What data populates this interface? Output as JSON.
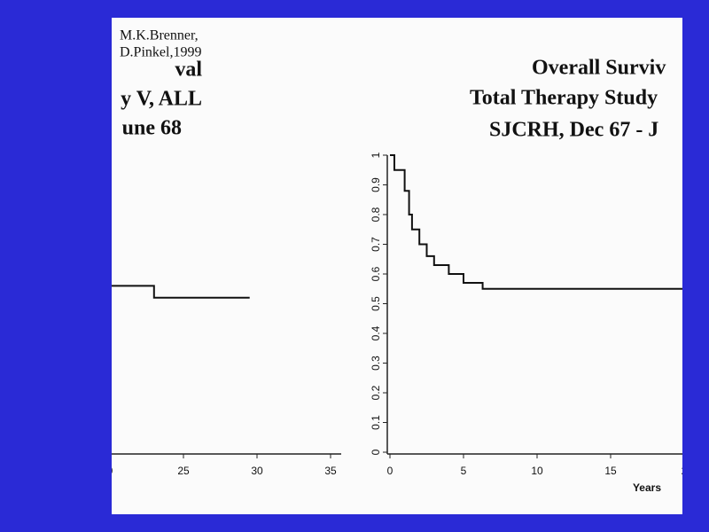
{
  "citation": [
    "M.K.Brenner,",
    "D.Pinkel,1999"
  ],
  "chart_data": [
    {
      "type": "line",
      "step": true,
      "title": [
        "val",
        "y V, ALL",
        "une 68"
      ],
      "x": [
        20,
        23,
        29.5
      ],
      "values": [
        0.56,
        0.52,
        0.52
      ],
      "color": "#111111",
      "xlim": [
        20,
        35
      ],
      "xticks": [
        {
          "value": 20,
          "label": "0"
        },
        25,
        30,
        35
      ],
      "ylim": [
        0,
        1
      ]
    },
    {
      "type": "line",
      "step": true,
      "title": [
        "Overall Surviv",
        "Total Therapy Study",
        "SJCRH, Dec 67 - J"
      ],
      "xlabel": "Years",
      "x": [
        0,
        0.3,
        1,
        1.3,
        1.5,
        2,
        2.5,
        3,
        4,
        5,
        6.3,
        20
      ],
      "values": [
        1,
        0.95,
        0.88,
        0.8,
        0.75,
        0.7,
        0.66,
        0.63,
        0.6,
        0.57,
        0.55,
        0.55
      ],
      "color": "#111111",
      "xlim": [
        0,
        20
      ],
      "xticks": [
        0,
        5,
        10,
        15,
        {
          "value": 20,
          "label": "2"
        }
      ],
      "ylim": [
        0,
        1
      ],
      "yticks": [
        0,
        0.1,
        0.2,
        0.3,
        0.4,
        0.5,
        0.6,
        0.7,
        0.8,
        0.9,
        1
      ]
    }
  ]
}
